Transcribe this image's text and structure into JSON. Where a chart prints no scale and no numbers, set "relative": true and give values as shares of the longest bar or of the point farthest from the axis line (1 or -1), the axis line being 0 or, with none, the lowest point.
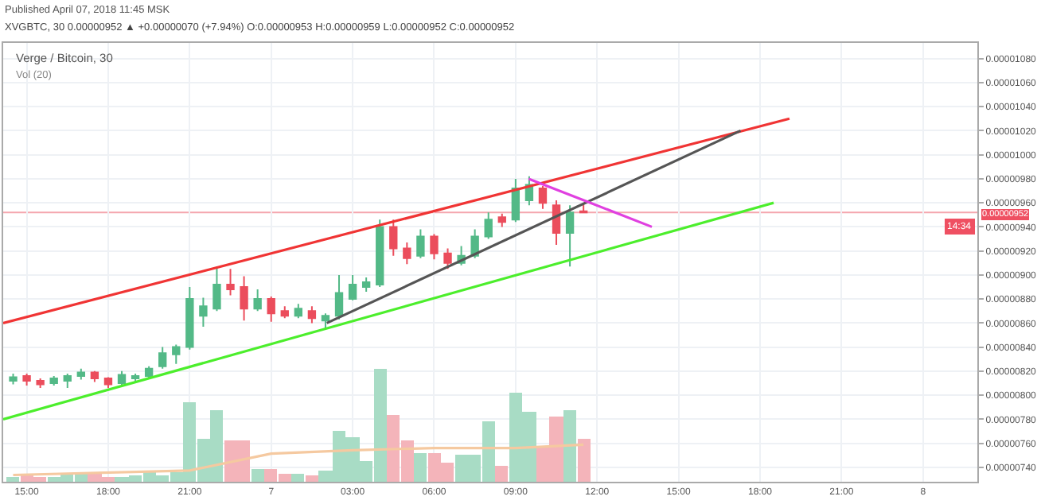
{
  "chart_data": [
    {
      "type": "candlestick",
      "title": "Verge / Bitcoin, 30",
      "annotations": [
        "Published April 07, 2018 11:45 MSK",
        "XVGBTC, 30 0.00000952 ▲ +0.00000070 (+7.94%) O:0.00000953 H:0.00000959 L:0.00000952 C:0.00000952",
        "14:34"
      ],
      "x": [
        "2018-04-06T14:30",
        "2018-04-06T15:00",
        "2018-04-06T15:30",
        "2018-04-06T16:00",
        "2018-04-06T16:30",
        "2018-04-06T17:00",
        "2018-04-06T17:30",
        "2018-04-06T18:00",
        "2018-04-06T18:30",
        "2018-04-06T19:00",
        "2018-04-06T19:30",
        "2018-04-06T20:00",
        "2018-04-06T20:30",
        "2018-04-06T21:00",
        "2018-04-06T21:30",
        "2018-04-06T22:00",
        "2018-04-06T22:30",
        "2018-04-06T23:00",
        "2018-04-06T23:30",
        "2018-04-07T00:00",
        "2018-04-07T00:30",
        "2018-04-07T01:00",
        "2018-04-07T01:30",
        "2018-04-07T02:00",
        "2018-04-07T02:30",
        "2018-04-07T03:00",
        "2018-04-07T03:30",
        "2018-04-07T04:00",
        "2018-04-07T04:30",
        "2018-04-07T05:00",
        "2018-04-07T05:30",
        "2018-04-07T06:00",
        "2018-04-07T06:30",
        "2018-04-07T07:00",
        "2018-04-07T07:30",
        "2018-04-07T08:00",
        "2018-04-07T08:30",
        "2018-04-07T09:00",
        "2018-04-07T09:30",
        "2018-04-07T10:00",
        "2018-04-07T10:30",
        "2018-04-07T11:00",
        "2018-04-07T11:30"
      ],
      "ohlc": [
        [
          8.12e-06,
          8.18e-06,
          8.09e-06,
          8.15e-06
        ],
        [
          8.16e-06,
          8.18e-06,
          8.08e-06,
          8.12e-06
        ],
        [
          8.12e-06,
          8.14e-06,
          8.06e-06,
          8.09e-06
        ],
        [
          8.1e-06,
          8.16e-06,
          8.08e-06,
          8.14e-06
        ],
        [
          8.12e-06,
          8.18e-06,
          8.06e-06,
          8.16e-06
        ],
        [
          8.16e-06,
          8.22e-06,
          8.13e-06,
          8.19e-06
        ],
        [
          8.19e-06,
          8.2e-06,
          8.11e-06,
          8.14e-06
        ],
        [
          8.14e-06,
          8.15e-06,
          8.06e-06,
          8.09e-06
        ],
        [
          8.1e-06,
          8.2e-06,
          8.08e-06,
          8.17e-06
        ],
        [
          8.14e-06,
          8.18e-06,
          8.11e-06,
          8.16e-06
        ],
        [
          8.16e-06,
          8.24e-06,
          8.14e-06,
          8.22e-06
        ],
        [
          8.24e-06,
          8.4e-06,
          8.22e-06,
          8.35e-06
        ],
        [
          8.34e-06,
          8.42e-06,
          8.26e-06,
          8.4e-06
        ],
        [
          8.4e-06,
          8.9e-06,
          8.38e-06,
          8.8e-06
        ],
        [
          8.66e-06,
          8.81e-06,
          8.57e-06,
          8.74e-06
        ],
        [
          8.72e-06,
          9.07e-06,
          8.7e-06,
          8.92e-06
        ],
        [
          8.92e-06,
          9.05e-06,
          8.83e-06,
          8.88e-06
        ],
        [
          8.9e-06,
          8.99e-06,
          8.62e-06,
          8.72e-06
        ],
        [
          8.72e-06,
          8.88e-06,
          8.7e-06,
          8.8e-06
        ],
        [
          8.8e-06,
          8.82e-06,
          8.61e-06,
          8.68e-06
        ],
        [
          8.7e-06,
          8.74e-06,
          8.64e-06,
          8.66e-06
        ],
        [
          8.66e-06,
          8.76e-06,
          8.64e-06,
          8.72e-06
        ],
        [
          8.7e-06,
          8.74e-06,
          8.6e-06,
          8.64e-06
        ],
        [
          8.62e-06,
          8.68e-06,
          8.55e-06,
          8.66e-06
        ],
        [
          8.66e-06,
          9e-06,
          8.63e-06,
          8.85e-06
        ],
        [
          8.8e-06,
          9e-06,
          8.79e-06,
          8.92e-06
        ],
        [
          8.9e-06,
          8.98e-06,
          8.86e-06,
          8.94e-06
        ],
        [
          8.92e-06,
          9.46e-06,
          8.9e-06,
          9.4e-06
        ],
        [
          9.4e-06,
          9.46e-06,
          9.16e-06,
          9.22e-06
        ],
        [
          9.22e-06,
          9.27e-06,
          9.09e-06,
          9.14e-06
        ],
        [
          9.16e-06,
          9.38e-06,
          9.14e-06,
          9.32e-06
        ],
        [
          9.32e-06,
          9.34e-06,
          9.13e-06,
          9.18e-06
        ],
        [
          9.18e-06,
          9.22e-06,
          9.05e-06,
          9.1e-06
        ],
        [
          9.1e-06,
          9.24e-06,
          9.08e-06,
          9.16e-06
        ],
        [
          9.16e-06,
          9.38e-06,
          9.14e-06,
          9.32e-06
        ],
        [
          9.32e-06,
          9.52e-06,
          9.3e-06,
          9.46e-06
        ],
        [
          9.48e-06,
          9.51e-06,
          9.4e-06,
          9.44e-06
        ],
        [
          9.46e-06,
          9.8e-06,
          9.44e-06,
          9.72e-06
        ],
        [
          9.62e-06,
          9.82e-06,
          9.58e-06,
          9.75e-06
        ],
        [
          9.72e-06,
          9.74e-06,
          9.55e-06,
          9.6e-06
        ],
        [
          9.58e-06,
          9.62e-06,
          9.25e-06,
          9.35e-06
        ],
        [
          9.35e-06,
          9.58e-06,
          9.07e-06,
          9.52e-06
        ],
        [
          9.53e-06,
          9.59e-06,
          9.52e-06,
          9.52e-06
        ]
      ],
      "colors": [
        "#53b987",
        "#eb4d5c",
        "#eb4d5c",
        "#53b987",
        "#53b987",
        "#53b987",
        "#eb4d5c",
        "#eb4d5c",
        "#53b987",
        "#53b987",
        "#53b987",
        "#53b987",
        "#53b987",
        "#53b987",
        "#53b987",
        "#53b987",
        "#eb4d5c",
        "#eb4d5c",
        "#53b987",
        "#eb4d5c",
        "#eb4d5c",
        "#53b987",
        "#eb4d5c",
        "#53b987",
        "#53b987",
        "#53b987",
        "#53b987",
        "#53b987",
        "#eb4d5c",
        "#eb4d5c",
        "#53b987",
        "#eb4d5c",
        "#eb4d5c",
        "#53b987",
        "#53b987",
        "#53b987",
        "#eb4d5c",
        "#53b987",
        "#53b987",
        "#eb4d5c",
        "#eb4d5c",
        "#53b987",
        "#eb4d5c"
      ],
      "series": [
        {
          "type": "line",
          "color": "#f03434",
          "x": [
            "2018-04-06T14:08",
            "2018-04-07T19:05"
          ],
          "values": [
            8.6e-06,
            1.03e-05
          ]
        },
        {
          "type": "line",
          "color": "#4cee2c",
          "x": [
            "2018-04-06T14:08",
            "2018-04-07T18:30"
          ],
          "values": [
            7.8e-06,
            9.6e-06
          ]
        },
        {
          "type": "line",
          "color": "#555555",
          "x": [
            "2018-04-07T02:03",
            "2018-04-07T17:17"
          ],
          "values": [
            8.6e-06,
            1.02e-05
          ]
        },
        {
          "type": "line",
          "color": "#e040e0",
          "x": [
            "2018-04-07T09:29",
            "2018-04-07T14:01"
          ],
          "values": [
            9.8e-06,
            9.4e-06
          ]
        }
      ],
      "ref_lines": [
        {
          "axis": "y",
          "value": 9.52e-06,
          "label": "0.00000952",
          "color": "#f4a6ae"
        }
      ],
      "xlim": [
        "2018-04-06T14:08",
        "2018-04-08T02:00"
      ],
      "xticks": [
        {
          "value": "2018-04-06T15:00",
          "label": "15:00"
        },
        {
          "value": "2018-04-06T18:00",
          "label": "18:00"
        },
        {
          "value": "2018-04-06T21:00",
          "label": "21:00"
        },
        {
          "value": "2018-04-07T00:00",
          "label": "7"
        },
        {
          "value": "2018-04-07T03:00",
          "label": "03:00"
        },
        {
          "value": "2018-04-07T06:00",
          "label": "06:00"
        },
        {
          "value": "2018-04-07T09:00",
          "label": "09:00"
        },
        {
          "value": "2018-04-07T12:00",
          "label": "12:00"
        },
        {
          "value": "2018-04-07T15:00",
          "label": "15:00"
        },
        {
          "value": "2018-04-07T18:00",
          "label": "18:00"
        },
        {
          "value": "2018-04-07T21:00",
          "label": "21:00"
        },
        {
          "value": "2018-04-08T00:00",
          "label": "8"
        }
      ],
      "ylim": [
        7.28e-06,
        1.093e-05
      ],
      "yticks": [
        {
          "value": 7.4e-06,
          "label": "0.00000740"
        },
        {
          "value": 7.6e-06,
          "label": "0.00000760"
        },
        {
          "value": 7.8e-06,
          "label": "0.00000780"
        },
        {
          "value": 8e-06,
          "label": "0.00000800"
        },
        {
          "value": 8.2e-06,
          "label": "0.00000820"
        },
        {
          "value": 8.4e-06,
          "label": "0.00000840"
        },
        {
          "value": 8.6e-06,
          "label": "0.00000860"
        },
        {
          "value": 8.8e-06,
          "label": "0.00000880"
        },
        {
          "value": 9e-06,
          "label": "0.00000900"
        },
        {
          "value": 9.2e-06,
          "label": "0.00000920"
        },
        {
          "value": 9.4e-06,
          "label": "0.00000940"
        },
        {
          "value": 9.6e-06,
          "label": "0.00000960"
        },
        {
          "value": 9.8e-06,
          "label": "0.00000980"
        },
        {
          "value": 1e-05,
          "label": "0.00001000"
        },
        {
          "value": 1.02e-05,
          "label": "0.00001020"
        },
        {
          "value": 1.04e-05,
          "label": "0.00001040"
        },
        {
          "value": 1.06e-05,
          "label": "0.00001060"
        },
        {
          "value": 1.08e-05,
          "label": "0.00001080"
        }
      ],
      "grid": true
    },
    {
      "type": "bar",
      "title": "Vol (20)",
      "relative": true,
      "xlim": [
        "2018-04-06T14:08",
        "2018-04-08T02:00"
      ],
      "x": [
        "2018-04-06T14:30",
        "2018-04-06T15:00",
        "2018-04-06T15:30",
        "2018-04-06T16:00",
        "2018-04-06T16:30",
        "2018-04-06T17:00",
        "2018-04-06T17:30",
        "2018-04-06T18:00",
        "2018-04-06T18:30",
        "2018-04-06T19:00",
        "2018-04-06T19:30",
        "2018-04-06T20:00",
        "2018-04-06T20:30",
        "2018-04-06T21:00",
        "2018-04-06T21:30",
        "2018-04-06T22:00",
        "2018-04-06T22:30",
        "2018-04-06T23:00",
        "2018-04-06T23:30",
        "2018-04-07T00:00",
        "2018-04-07T00:30",
        "2018-04-07T01:00",
        "2018-04-07T01:30",
        "2018-04-07T02:00",
        "2018-04-07T02:30",
        "2018-04-07T03:00",
        "2018-04-07T03:30",
        "2018-04-07T04:00",
        "2018-04-07T04:30",
        "2018-04-07T05:00",
        "2018-04-07T05:30",
        "2018-04-07T06:00",
        "2018-04-07T06:30",
        "2018-04-07T07:00",
        "2018-04-07T07:30",
        "2018-04-07T08:00",
        "2018-04-07T08:30",
        "2018-04-07T09:00",
        "2018-04-07T09:30",
        "2018-04-07T10:00",
        "2018-04-07T10:30",
        "2018-04-07T11:00",
        "2018-04-07T11:30"
      ],
      "series": [
        {
          "type": "bar",
          "values": [
            0.04,
            0.06,
            0.04,
            0.04,
            0.07,
            0.08,
            0.07,
            0.04,
            0.04,
            0.06,
            0.08,
            0.06,
            0.08,
            0.7,
            0.38,
            0.63,
            0.37,
            0.37,
            0.11,
            0.11,
            0.07,
            0.07,
            0.06,
            0.1,
            0.45,
            0.39,
            0.18,
            1,
            0.59,
            0.37,
            0.25,
            0.25,
            0.17,
            0.24,
            0.24,
            0.54,
            0.14,
            0.79,
            0.62,
            0.31,
            0.58,
            0.63,
            0.38
          ],
          "colors": [
            "#a8dcc5",
            "#f4b4ba",
            "#f4b4ba",
            "#a8dcc5",
            "#a8dcc5",
            "#a8dcc5",
            "#f4b4ba",
            "#f4b4ba",
            "#a8dcc5",
            "#a8dcc5",
            "#a8dcc5",
            "#a8dcc5",
            "#a8dcc5",
            "#a8dcc5",
            "#a8dcc5",
            "#a8dcc5",
            "#f4b4ba",
            "#f4b4ba",
            "#a8dcc5",
            "#f4b4ba",
            "#f4b4ba",
            "#a8dcc5",
            "#f4b4ba",
            "#a8dcc5",
            "#a8dcc5",
            "#a8dcc5",
            "#a8dcc5",
            "#a8dcc5",
            "#f4b4ba",
            "#f4b4ba",
            "#a8dcc5",
            "#f4b4ba",
            "#f4b4ba",
            "#a8dcc5",
            "#a8dcc5",
            "#a8dcc5",
            "#f4b4ba",
            "#a8dcc5",
            "#a8dcc5",
            "#f4b4ba",
            "#f4b4ba",
            "#a8dcc5",
            "#f4b4ba"
          ]
        },
        {
          "type": "line",
          "color": "#f5c9a0",
          "x": [
            "2018-04-06T14:30",
            "2018-04-06T21:00",
            "2018-04-07T00:00",
            "2018-04-07T03:00",
            "2018-04-07T06:00",
            "2018-04-07T09:00",
            "2018-04-07T11:30"
          ],
          "values": [
            0.06,
            0.1,
            0.25,
            0.28,
            0.3,
            0.3,
            0.33
          ]
        }
      ]
    }
  ]
}
